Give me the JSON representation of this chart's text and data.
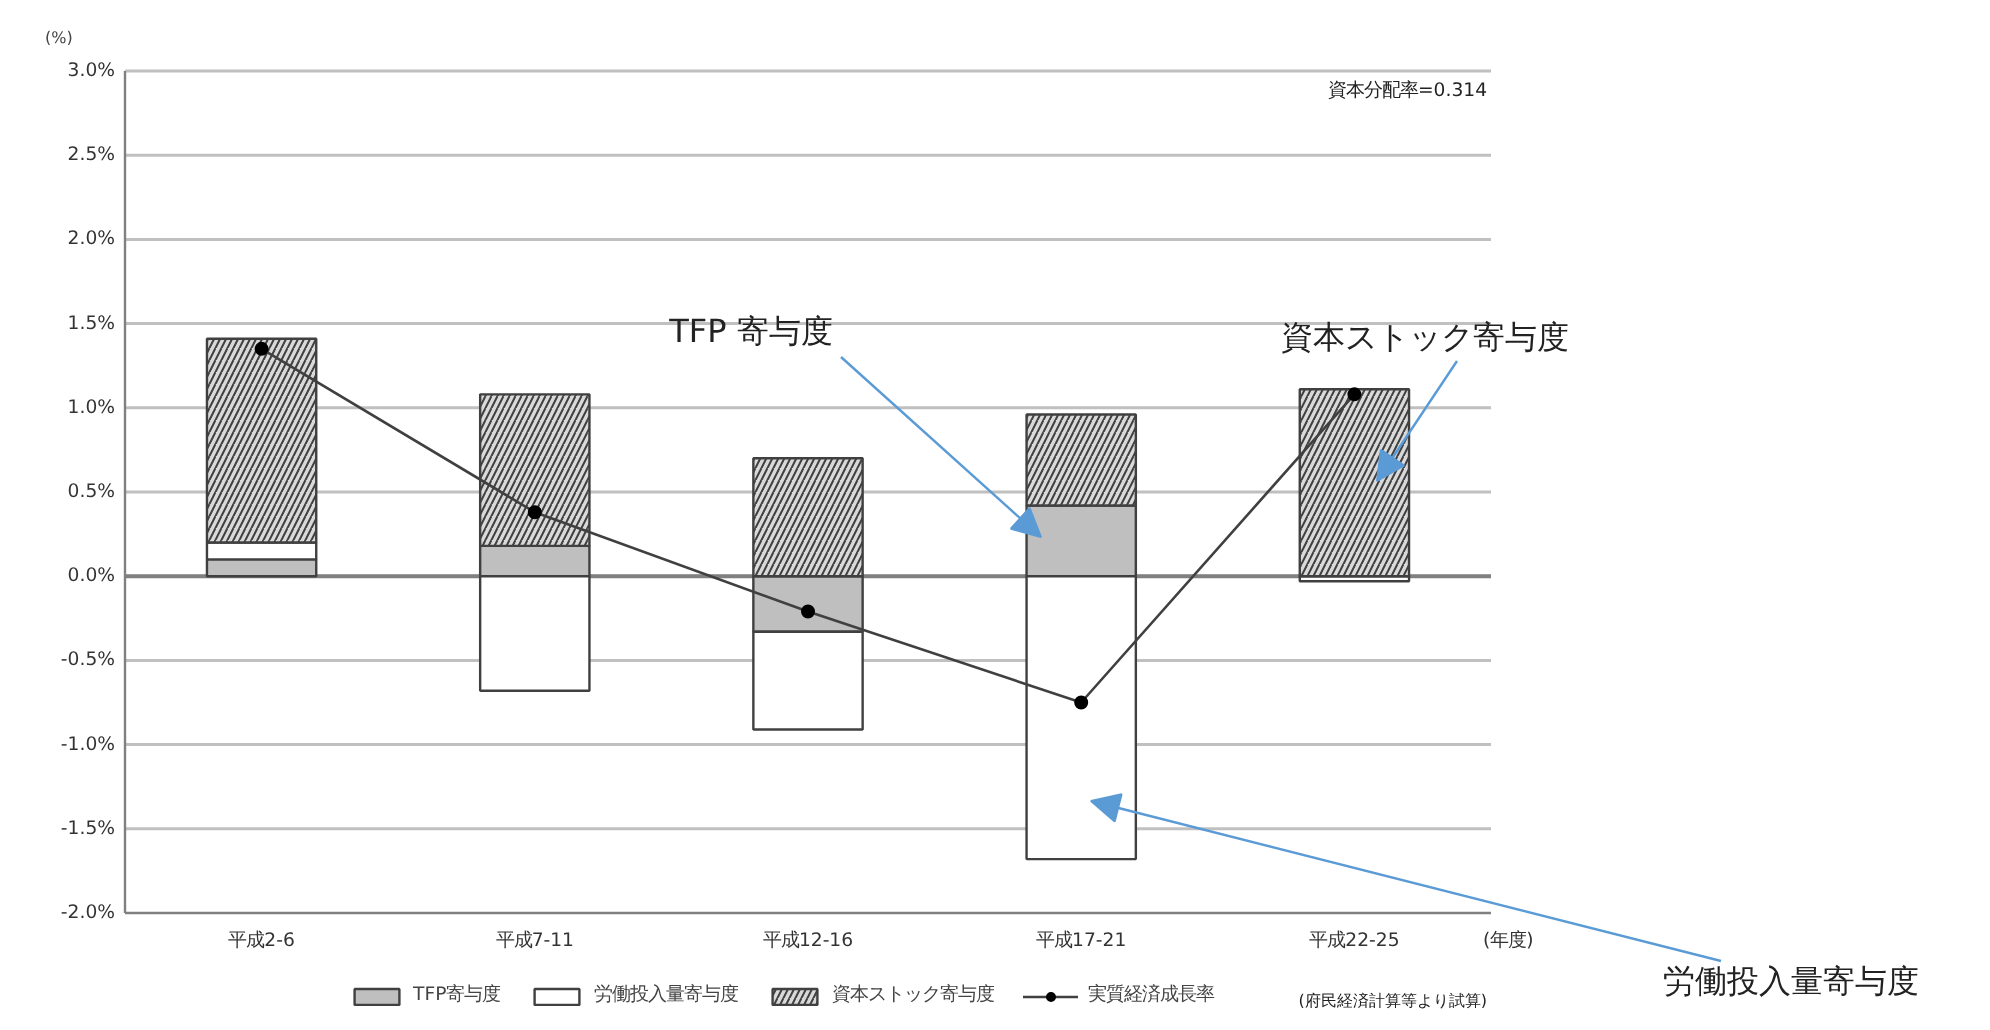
{
  "chart_data": {
    "type": "bar",
    "stacked": true,
    "xlabel": "(年度)",
    "ylabel": "(%)",
    "categories": [
      "平成2-6",
      "平成7-11",
      "平成12-16",
      "平成17-21",
      "平成22-25"
    ],
    "series": [
      {
        "name": "TFP寄与度",
        "color": "#bfbfbf",
        "values": [
          0.1,
          0.18,
          -0.33,
          0.42,
          null
        ]
      },
      {
        "name": "労働投入量寄与度",
        "color": "#ffffff",
        "values": [
          0.1,
          -0.68,
          -0.58,
          -1.68,
          -0.03
        ]
      },
      {
        "name": "資本ストック寄与度",
        "color": "#d9d9d9",
        "values": [
          1.21,
          0.9,
          0.7,
          0.54,
          1.11
        ]
      },
      {
        "name": "実質経済成長率",
        "type": "line",
        "color": "#404040",
        "marker": "circle",
        "values": [
          1.35,
          0.38,
          -0.21,
          -0.75,
          1.08
        ]
      }
    ],
    "ylim": [
      -2,
      3
    ],
    "yticks": [
      {
        "value": -2,
        "label": "-2.0%"
      },
      {
        "value": -1.5,
        "label": "-1.5%"
      },
      {
        "value": -1,
        "label": "-1.0%"
      },
      {
        "value": -0.5,
        "label": "-0.5%"
      },
      {
        "value": 0,
        "label": "0.0%"
      },
      {
        "value": 0.5,
        "label": "0.5%"
      },
      {
        "value": 1,
        "label": "1.0%"
      },
      {
        "value": 1.5,
        "label": "1.5%"
      },
      {
        "value": 2,
        "label": "2.0%"
      },
      {
        "value": 2.5,
        "label": "2.5%"
      },
      {
        "value": 3,
        "label": "3.0%"
      }
    ],
    "grid": "y",
    "legend": "bottom",
    "annotations": [
      "資本分配率=0.314",
      "(府民経済計算等より試算)",
      "TFP 寄与度",
      "資本ストック寄与度",
      "労働投入量寄与度"
    ]
  }
}
